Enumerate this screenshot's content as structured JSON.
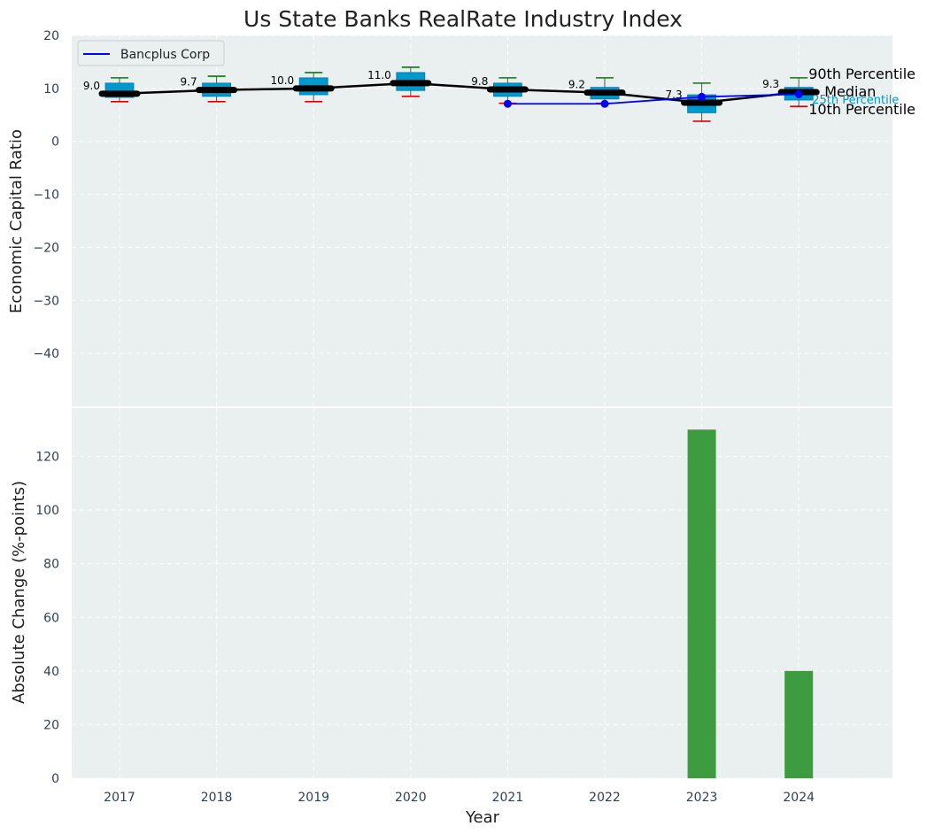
{
  "chart_data": [
    {
      "type": "box",
      "title": "Us State Banks RealRate Industry Index",
      "ylabel": "Economic Capital Ratio",
      "ylim": [
        -50,
        20
      ],
      "yticks": [
        20,
        10,
        0,
        -10,
        -20,
        -30,
        -40
      ],
      "categories": [
        "2017",
        "2018",
        "2019",
        "2020",
        "2021",
        "2022",
        "2023",
        "2024"
      ],
      "grid": true,
      "legend": {
        "position": "top-left",
        "entries": [
          "Bancplus Corp"
        ]
      },
      "percentiles": {
        "p10": [
          7.5,
          7.5,
          7.5,
          8.5,
          7.2,
          7.2,
          3.8,
          6.6
        ],
        "p25": [
          8.3,
          8.5,
          8.8,
          9.6,
          8.5,
          8.0,
          5.4,
          7.8
        ],
        "median": [
          9.0,
          9.7,
          10.0,
          11.0,
          9.8,
          9.2,
          7.3,
          9.3
        ],
        "p75": [
          11.0,
          11.0,
          12.0,
          13.0,
          11.0,
          10.2,
          8.8,
          10.2
        ],
        "p90": [
          12.0,
          12.3,
          13.0,
          14.0,
          12.0,
          12.0,
          11.0,
          12.0
        ]
      },
      "median_labels": [
        "9.0",
        "9.7",
        "10.0",
        "11.0",
        "9.8",
        "9.2",
        "7.3",
        "9.3"
      ],
      "series": [
        {
          "name": "Bancplus Corp",
          "x": [
            "2021",
            "2022",
            "2023",
            "2024"
          ],
          "values": [
            7.1,
            7.1,
            8.4,
            8.9
          ],
          "color": "#0000ff"
        }
      ],
      "annotations": {
        "p90": "90th Percentile",
        "median": "Median",
        "p10": "10th Percentile",
        "p25": "25th Percentile"
      },
      "colors": {
        "box": "#0099cc",
        "median_line": "#000000",
        "whisker_top": "#008000",
        "whisker_bottom": "#dd0000",
        "background": "#eaeff0"
      }
    },
    {
      "type": "bar",
      "ylabel": "Absolute Change (%-points)",
      "xlabel": "Year",
      "categories": [
        "2017",
        "2018",
        "2019",
        "2020",
        "2021",
        "2022",
        "2023",
        "2024"
      ],
      "values": [
        0,
        0,
        0,
        0,
        0,
        0,
        130,
        40
      ],
      "ylim": [
        0,
        138
      ],
      "yticks": [
        0,
        20,
        40,
        60,
        80,
        100,
        120
      ],
      "grid": true,
      "colors": {
        "bar": "#3c9c3f",
        "background": "#eaeff0"
      }
    }
  ]
}
